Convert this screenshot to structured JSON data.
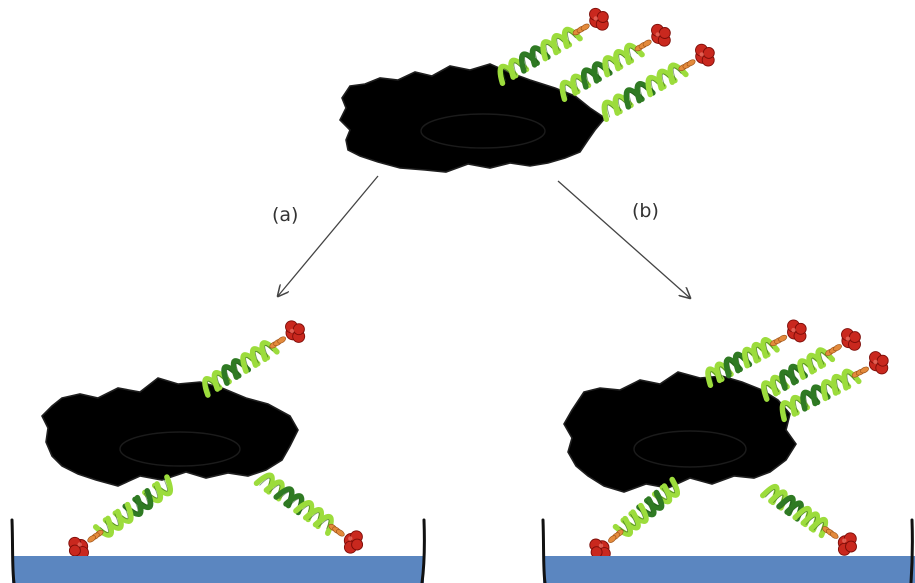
{
  "labels": {
    "path_a": "(a)",
    "path_b": "(b)"
  },
  "colors": {
    "cell": "#33cc99",
    "nucleus": "#0000dd",
    "substrate": "#5b86c0",
    "helix_light": "#9cdc3c",
    "helix_dark": "#2f7a23",
    "linker": "#e38a3c",
    "head": "#c9281e",
    "head_shade": "#7d0d08"
  },
  "scene": {
    "free_cell_receptors": 3,
    "cell_a_free_receptors": 1,
    "cell_a_bound_receptors": 2,
    "cell_b_free_receptors": 3,
    "cell_b_bound_receptors": 2
  }
}
